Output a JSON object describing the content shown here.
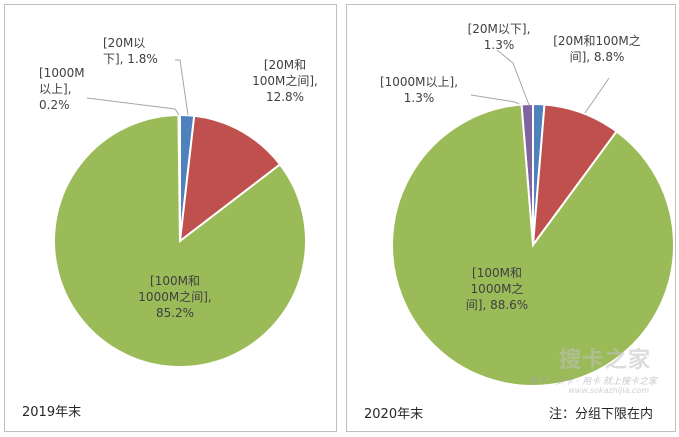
{
  "chart_data": [
    {
      "type": "pie",
      "title": "2019年末",
      "series": [
        {
          "label": "[1000M以上], 0.2%",
          "name": "1000M以上",
          "value": 0.2,
          "color": "#8064a2"
        },
        {
          "label": "[20M以下], 1.8%",
          "name": "20M以下",
          "value": 1.8,
          "color": "#4f81bd"
        },
        {
          "label": "[20M和100M之间], 12.8%",
          "name": "20M和100M之间",
          "value": 12.8,
          "color": "#c0504d"
        },
        {
          "label": "[100M和1000M之间], 85.2%",
          "name": "100M和1000M之间",
          "value": 85.2,
          "color": "#9bbb59"
        }
      ]
    },
    {
      "type": "pie",
      "title": "2020年末",
      "series": [
        {
          "label": "[1000M以上], 1.3%",
          "name": "1000M以上",
          "value": 1.3,
          "color": "#8064a2"
        },
        {
          "label": "[20M以下], 1.3%",
          "name": "20M以下",
          "value": 1.3,
          "color": "#4f81bd"
        },
        {
          "label": "[20M和100M之间], 8.8%",
          "name": "20M和100M之间",
          "value": 8.8,
          "color": "#c0504d"
        },
        {
          "label": "[100M和1000M之间], 88.6%",
          "name": "100M和1000M之间",
          "value": 88.6,
          "color": "#9bbb59"
        }
      ]
    }
  ],
  "footnote": "注：分组下限在内",
  "watermark": {
    "main": "搜卡之家",
    "tagline": "看卡 · 买卡 · 用卡 就上搜卡之家",
    "url": "www.sokazhijia.com"
  }
}
